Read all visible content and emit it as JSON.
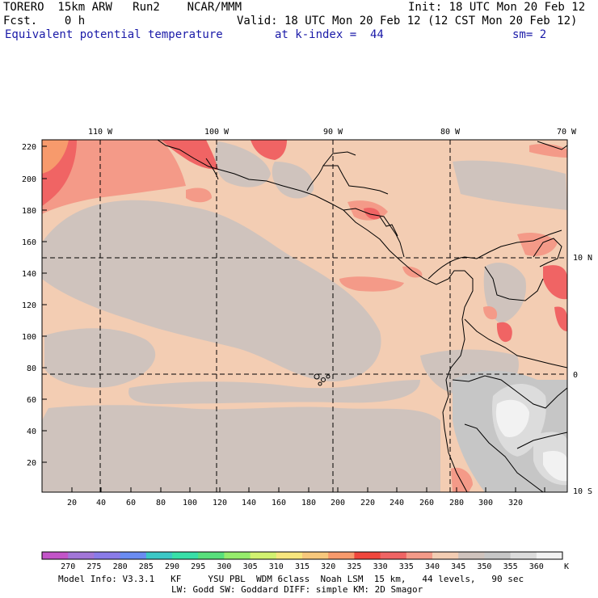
{
  "header": {
    "model": "TORERO  15km ARW   Run2    NCAR/MMM",
    "init": "Init: 18 UTC Mon 20 Feb 12",
    "fcst": "Fcst.    0 h",
    "valid": "Valid: 18 UTC Mon 20 Feb 12 (12 CST Mon 20 Feb 12)",
    "field": "Equivalent potential temperature",
    "level": "at k-index =  44",
    "smooth": "sm= 2"
  },
  "map": {
    "lon_labels": [
      "110 W",
      "100 W",
      "90 W",
      "80 W",
      "70 W"
    ],
    "lat_labels": [
      "10 N",
      "0",
      "10 S"
    ],
    "y_grid_labels": [
      "220",
      "200",
      "180",
      "160",
      "140",
      "120",
      "100",
      "80",
      "60",
      "40",
      "20"
    ],
    "x_grid_labels": [
      "20",
      "40",
      "60",
      "80",
      "100",
      "120",
      "140",
      "160",
      "180",
      "200",
      "220",
      "240",
      "260",
      "280",
      "300",
      "320"
    ]
  },
  "colorbar": {
    "labels": [
      "270",
      "275",
      "280",
      "285",
      "290",
      "295",
      "300",
      "305",
      "310",
      "315",
      "320",
      "325",
      "330",
      "335",
      "340",
      "345",
      "350",
      "355",
      "360"
    ],
    "unit": "K",
    "colors": [
      "#c354c8",
      "#a276d8",
      "#8a7be8",
      "#6a8cf2",
      "#3cc8c6",
      "#38e0a8",
      "#58e07c",
      "#96ec6c",
      "#d2f270",
      "#f7e67e",
      "#f7c87c",
      "#f79a6c",
      "#f0463c",
      "#f06464",
      "#f49a88",
      "#f3cdb3",
      "#cfc3bd",
      "#c6c6c6",
      "#dcdcdc",
      "#f2f2f2"
    ]
  },
  "footer": {
    "line1": "Model Info: V3.3.1   KF     YSU PBL  WDM 6class  Noah LSM  15 km,   44 levels,   90 sec",
    "line2": "LW: Godd SW: Goddard DIFF: simple KM: 2D Smagor"
  }
}
